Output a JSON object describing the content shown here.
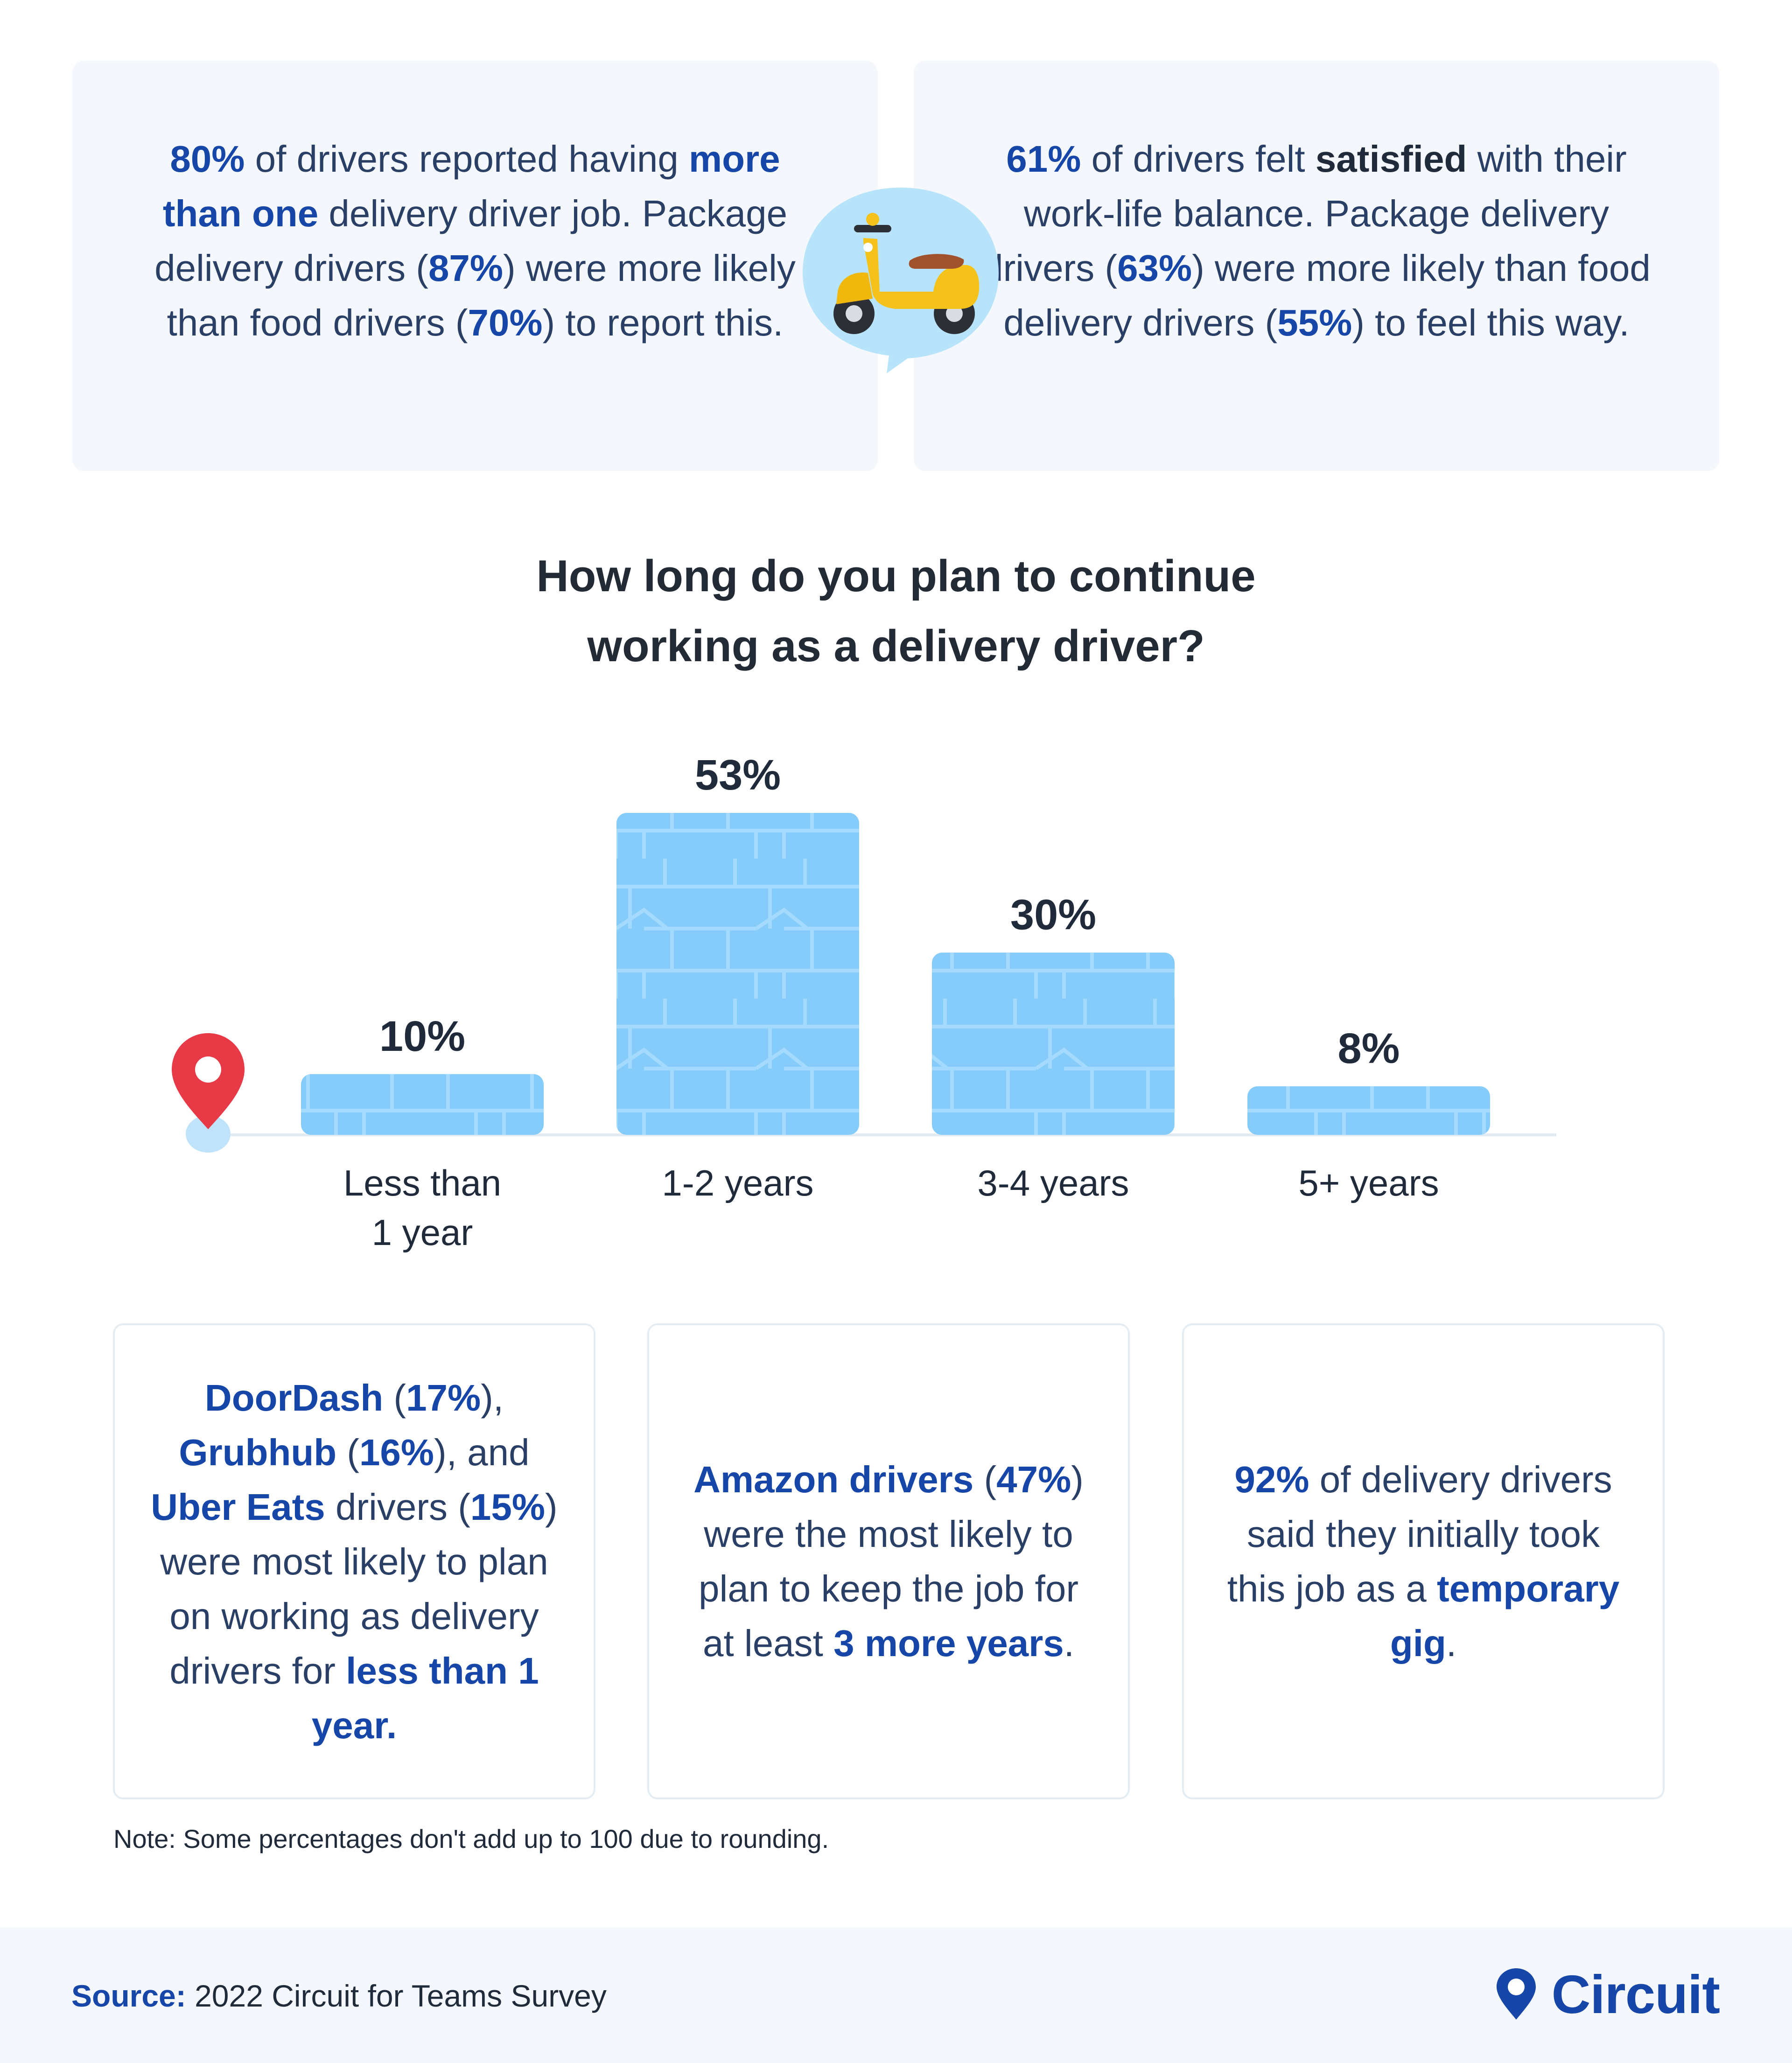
{
  "panels": {
    "left": {
      "p1": "80%",
      "t1": " of drivers reported having ",
      "p2": "more than one",
      "t2": " delivery driver job. Package delivery drivers (",
      "p3": "87%",
      "t3": ") were more likely than food drivers (",
      "p4": "70%",
      "t4": ") to report this."
    },
    "right": {
      "p1": "61%",
      "t1": " of drivers felt ",
      "p2": "satisfied",
      "t2": " with their work-life balance. Package delivery drivers (",
      "p3": "63%",
      "t3": ") were more likely than food delivery drivers (",
      "p4": "55%",
      "t4": ") to feel this way."
    }
  },
  "chart_title": {
    "line1": "How long do you plan to continue",
    "line2": "working as a delivery driver?"
  },
  "chart_data": {
    "type": "bar",
    "title": "How long do you plan to continue working as a delivery driver?",
    "categories": [
      "Less than 1 year",
      "1-2 years",
      "3-4 years",
      "5+ years"
    ],
    "category_lines": [
      [
        "Less than",
        "1 year"
      ],
      [
        "1-2 years"
      ],
      [
        "3-4 years"
      ],
      [
        "5+ years"
      ]
    ],
    "values": [
      10,
      53,
      30,
      8
    ],
    "value_labels": [
      "10%",
      "53%",
      "30%",
      "8%"
    ],
    "unit": "%",
    "ylim": [
      0,
      53
    ],
    "grid": false,
    "colors": {
      "bar": "#85ccfb",
      "bar_pattern": "#a4dafd",
      "baseline": "#e3eaf1",
      "pin": "#e83a46",
      "pin_base": "#bfe3fa"
    }
  },
  "cards": [
    {
      "parts": [
        {
          "t": "DoorDash",
          "b": true
        },
        {
          "t": " ("
        },
        {
          "t": "17%",
          "b": true
        },
        {
          "t": "), "
        },
        {
          "t": "Grubhub",
          "b": true
        },
        {
          "t": " ("
        },
        {
          "t": "16%",
          "b": true
        },
        {
          "t": "), and "
        },
        {
          "t": "Uber Eats",
          "b": true
        },
        {
          "t": " drivers ("
        },
        {
          "t": "15%",
          "b": true
        },
        {
          "t": ") were most likely to plan on working as delivery drivers for "
        },
        {
          "t": "less than 1 year.",
          "b": true
        }
      ]
    },
    {
      "parts": [
        {
          "t": "Amazon drivers",
          "b": true
        },
        {
          "t": " ("
        },
        {
          "t": "47%",
          "b": true
        },
        {
          "t": ") were the most likely to plan to keep the job for at least "
        },
        {
          "t": "3 more years",
          "b": true
        },
        {
          "t": "."
        }
      ]
    },
    {
      "parts": [
        {
          "t": "92%",
          "b": true
        },
        {
          "t": " of delivery drivers said they initially took this job as a "
        },
        {
          "t": "temporary gig",
          "b": true
        },
        {
          "t": "."
        }
      ]
    }
  ],
  "note": "Note: Some percentages don't add up to 100 due to rounding.",
  "footer": {
    "source_label": "Source:",
    "source_text": " 2022 Circuit for Teams Survey",
    "brand": "Circuit"
  },
  "colors": {
    "accent": "#1546a8",
    "panel_bg": "#f4f7fb",
    "card_border": "#e4ecf4",
    "bubble": "#b7e3fb"
  }
}
